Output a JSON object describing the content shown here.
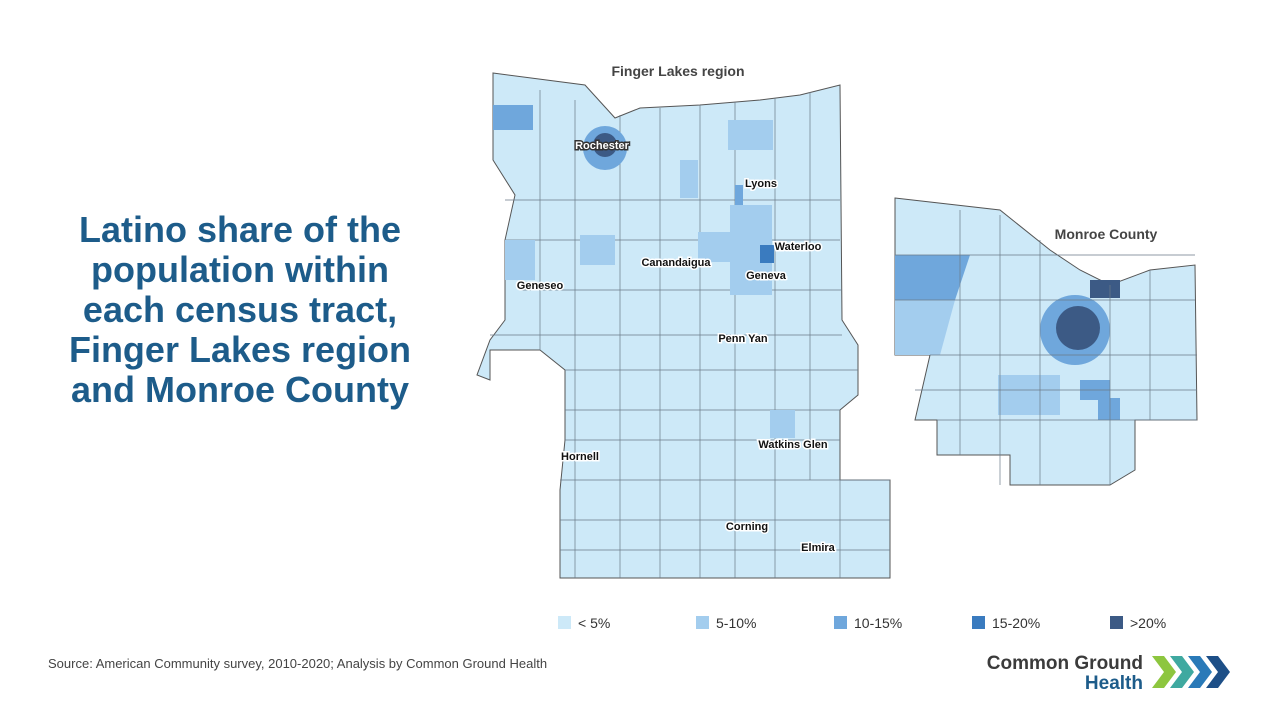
{
  "title": "Latino share of the population within each census tract, Finger Lakes region and Monroe County",
  "maps": [
    {
      "title": "Finger Lakes region",
      "places": [
        "Rochester",
        "Lyons",
        "Waterloo",
        "Canandaigua",
        "Geneva",
        "Geneseo",
        "Penn Yan",
        "Hornell",
        "Watkins Glen",
        "Corning",
        "Elmira"
      ]
    },
    {
      "title": "Monroe County"
    }
  ],
  "legend": [
    {
      "label": "< 5%",
      "color": "#cde9f8"
    },
    {
      "label": "5-10%",
      "color": "#a3cdee"
    },
    {
      "label": "10-15%",
      "color": "#6fa7dc"
    },
    {
      "label": "15-20%",
      "color": "#3a7bbf"
    },
    {
      "label": ">20%",
      "color": "#3c5a85"
    }
  ],
  "source": "Source: American Community survey, 2010-2020; Analysis by Common Ground Health",
  "logo": {
    "line1": "Common Ground",
    "line2": "Health"
  }
}
